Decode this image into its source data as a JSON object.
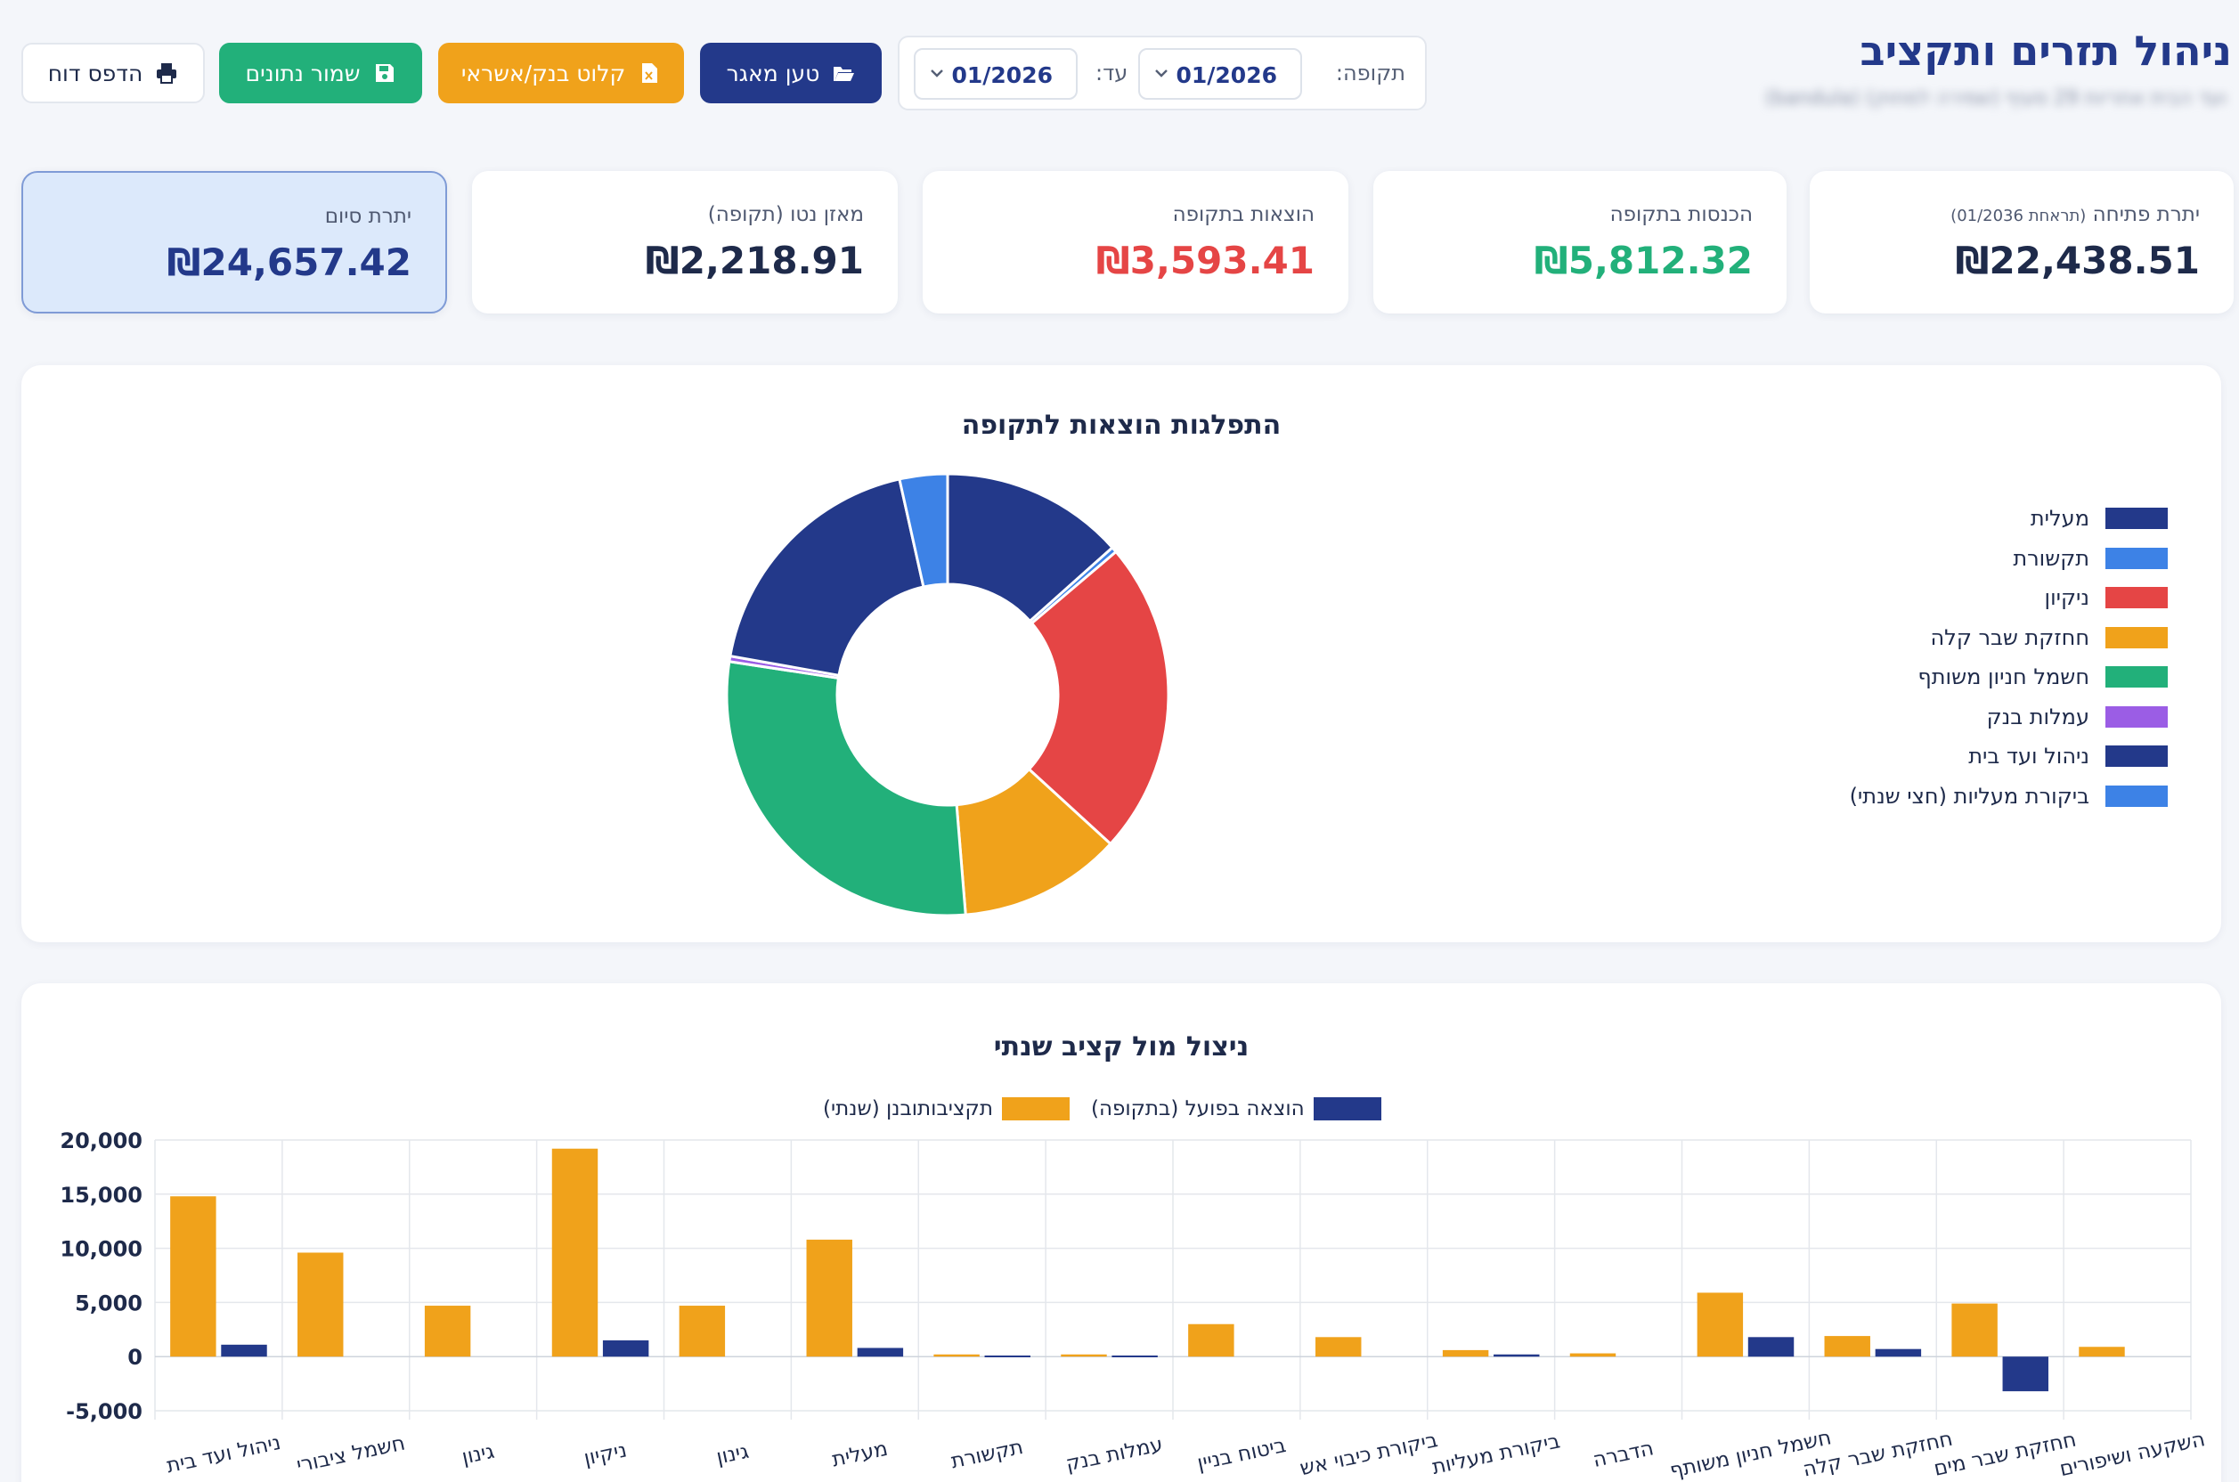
{
  "header": {
    "title": "ניהול תזרים ותקציב",
    "subtitle": "ועד הבית אחריות 29 סעיף (שמירה למחוק) (bandula)",
    "period_label": "תקופה:",
    "from_month": "01/2026",
    "to_label": "עד:",
    "to_month": "01/2026"
  },
  "toolbar": {
    "load_label": "טען מאגר",
    "import_label": "קלוט בנק/אשראי",
    "save_label": "שמור נתונים",
    "print_label": "הדפס דוח"
  },
  "stats": {
    "opening_label": "יתרת פתיחה",
    "opening_note": "(תראחת 01/2036)",
    "opening_value": "₪22,438.51",
    "income_label": "הכנסות בתקופה",
    "income_value": "₪5,812.32",
    "expense_label": "הוצאות בתקופה",
    "expense_value": "₪3,593.41",
    "net_label": "מאזן נטו (תקופה)",
    "net_value": "₪2,218.91",
    "closing_label": "יתרת סיום",
    "closing_value": "₪24,657.42"
  },
  "colors": {
    "navy": "#23398a",
    "blue": "#3d82e6",
    "red": "#e54545",
    "orange": "#f0a21b",
    "green": "#22b07a",
    "purple": "#9b5de5"
  },
  "donut_chart": {
    "type": "pie",
    "title": "התפלגות הוצאות לתקופה",
    "legend_position": "right",
    "legend": [
      {
        "name": "מעלית",
        "color": "#23398a"
      },
      {
        "name": "תקשורת",
        "color": "#3d82e6"
      },
      {
        "name": "ניקיון",
        "color": "#e54545"
      },
      {
        "name": "חחזקת שבר קלה",
        "color": "#f0a21b"
      },
      {
        "name": "חשמל חניון משותף",
        "color": "#22b07a"
      },
      {
        "name": "עמלות בנק",
        "color": "#9b5de5"
      },
      {
        "name": "ניהול ועד בית",
        "color": "#23398a"
      },
      {
        "name": "ביקורת מעליות (חצי שנתי)",
        "color": "#3d82e6"
      }
    ],
    "slices": [
      {
        "value": 13.4,
        "color": "#23398a"
      },
      {
        "value": 0.4,
        "color": "#3d82e6"
      },
      {
        "value": 23.0,
        "color": "#e54545"
      },
      {
        "value": 11.9,
        "color": "#f0a21b"
      },
      {
        "value": 28.7,
        "color": "#22b07a"
      },
      {
        "value": 0.4,
        "color": "#9b5de5"
      },
      {
        "value": 18.7,
        "color": "#23398a"
      },
      {
        "value": 3.5,
        "color": "#3d82e6"
      }
    ]
  },
  "chart_data": {
    "type": "bar",
    "title": "ניצול מול קציב שנתי",
    "legend_position": "top",
    "categories": [
      "ניהול ועד בית",
      "חשמל ציבורי",
      "גינון",
      "ניקיון",
      "גינון",
      "מעלית",
      "תקשורת",
      "עמלות בנק",
      "ביטוח בניין",
      "ביקורת כיבוי אש",
      "ביקורת מעליות",
      "הדברה",
      "חשמל חניון משותף",
      "חחזקת שבר קלה",
      "חחזקת שבר מים",
      "השקעה ושיפורים"
    ],
    "series": [
      {
        "name": "תקציבותובנן (שנתי)",
        "color": "#f0a21b",
        "values": [
          14800,
          9600,
          4700,
          19200,
          4700,
          10800,
          200,
          200,
          3000,
          1800,
          600,
          300,
          5900,
          1900,
          4900,
          900
        ]
      },
      {
        "name": "הוצאה בפועל (בתקופה)",
        "color": "#23398a",
        "values": [
          1100,
          0,
          0,
          1500,
          0,
          800,
          100,
          100,
          0,
          0,
          200,
          0,
          1800,
          700,
          -3200,
          0
        ]
      }
    ],
    "yticks": [
      "20,000",
      "15,000",
      "10,000",
      "5,000",
      "0",
      "-5,000"
    ],
    "ylim": [
      -5000,
      20000
    ],
    "grid": true
  }
}
